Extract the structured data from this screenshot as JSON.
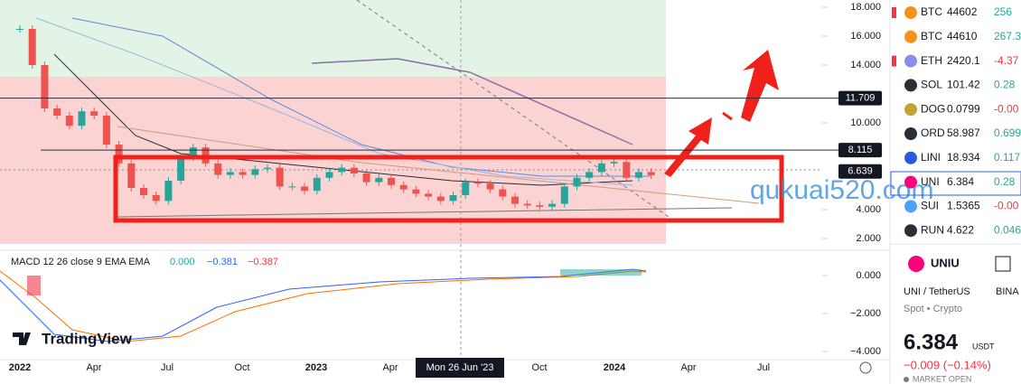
{
  "price_axis": {
    "ticks": [
      {
        "value": 18,
        "label": "18.000"
      },
      {
        "value": 16,
        "label": "16.000"
      },
      {
        "value": 14,
        "label": "14.000"
      },
      {
        "value": 10,
        "label": "10.000"
      },
      {
        "value": 4,
        "label": "4.000"
      },
      {
        "value": 2,
        "label": "2.000"
      }
    ],
    "markers": [
      {
        "value": 11.709,
        "label": "11.709"
      },
      {
        "value": 8.115,
        "label": "8.115"
      },
      {
        "value": 6.639,
        "label": "6.639"
      }
    ]
  },
  "macd_axis": {
    "ticks": [
      {
        "value": 0,
        "label": "0.000"
      },
      {
        "value": -2,
        "label": "−2.000"
      },
      {
        "value": -4,
        "label": "−4.000"
      }
    ]
  },
  "time_axis": {
    "labels": [
      "2022",
      "Apr",
      "Jul",
      "Oct",
      "2023",
      "Apr",
      "Oct",
      "2024",
      "Apr",
      "Jul"
    ]
  },
  "crosshair_label": "Mon 26 Jun '23",
  "candles": {
    "closes": [
      16.5,
      14,
      11,
      10.5,
      9.8,
      10.8,
      10.5,
      8.5,
      7.2,
      5.5,
      5.0,
      4.6,
      6.0,
      7.6,
      8.3,
      7.2,
      6.4,
      6.6,
      6.4,
      6.8,
      6.9,
      5.6,
      5.6,
      5.3,
      6.2,
      6.6,
      6.9,
      6.5,
      5.9,
      6.2,
      5.7,
      5.4,
      5.1,
      4.9,
      4.6,
      5.0,
      5.9,
      5.8,
      5.4,
      4.9,
      4.4,
      4.3,
      4.2,
      4.4,
      5.6,
      6.2,
      6.6,
      7.2,
      7.3,
      6.2,
      6.6,
      6.38
    ]
  },
  "macd": {
    "title": "MACD 12 26 close 9 EMA EMA",
    "values": [
      "0.000",
      "−0.381",
      "−0.387"
    ]
  },
  "logo": "TradingView",
  "watermark": "qukuai520.com",
  "watchlist": [
    {
      "symbol": "BTC",
      "last": "44602",
      "change": "256"
    },
    {
      "symbol": "BTC",
      "last": "44610",
      "change": "267.3"
    },
    {
      "symbol": "ETH",
      "last": "2420.1",
      "change": "-4.37"
    },
    {
      "symbol": "SOL",
      "last": "101.42",
      "change": "0.28"
    },
    {
      "symbol": "DOG",
      "last": "0.0799",
      "change": "-0.00"
    },
    {
      "symbol": "ORD",
      "last": "58.987",
      "change": "0.699"
    },
    {
      "symbol": "LINI",
      "last": "18.934",
      "change": "0.117"
    },
    {
      "symbol": "UNI",
      "last": "6.384",
      "change": "0.28"
    },
    {
      "symbol": "SUI",
      "last": "1.5365",
      "change": "-0.00"
    },
    {
      "symbol": "RUN",
      "last": "4.622",
      "change": "0.046"
    }
  ],
  "symbol": {
    "name": "UNIU",
    "pair": "UNI / TetherUS",
    "exchange": "BINA",
    "kind": "Spot • Crypto",
    "price": "6.384",
    "currency": "USDT",
    "change": "−0.009 (−0.14%)",
    "status": "MARKET OPEN"
  }
}
